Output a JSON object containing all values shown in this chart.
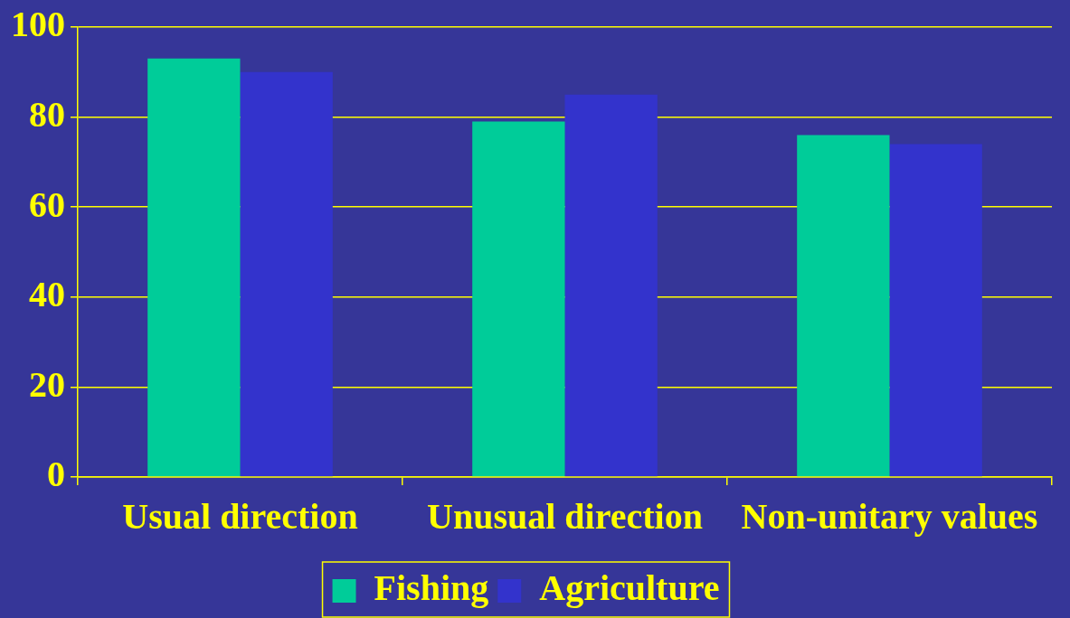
{
  "chart_data": {
    "type": "bar",
    "categories": [
      "Usual direction",
      "Unusual direction",
      "Non-unitary values"
    ],
    "series": [
      {
        "name": "Fishing",
        "color": "#00cc99",
        "values": [
          93,
          79,
          76
        ]
      },
      {
        "name": "Agriculture",
        "color": "#3333cc",
        "values": [
          90,
          85,
          74
        ]
      }
    ],
    "ylim": [
      0,
      100
    ],
    "yticks": [
      0,
      20,
      40,
      60,
      80,
      100
    ],
    "grid": "y",
    "legend": "bottom"
  }
}
